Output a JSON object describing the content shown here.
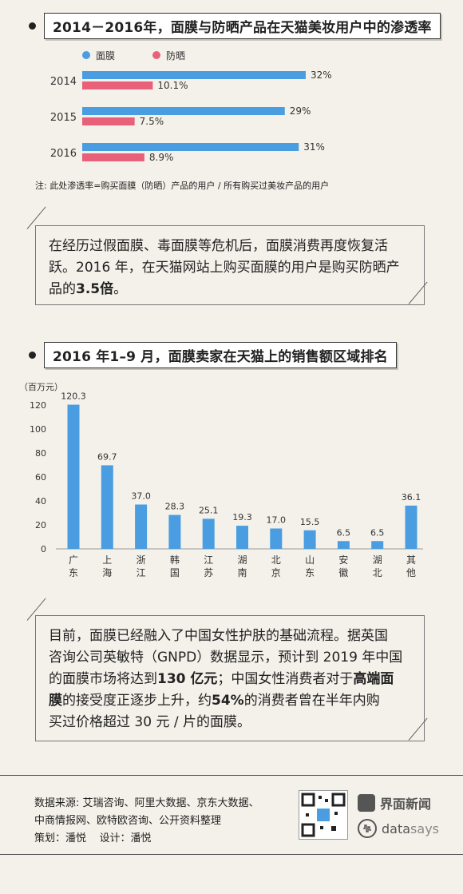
{
  "section1": {
    "title": "2014－2016年，面膜与防晒产品在天猫美妆用户中的渗透率",
    "note": "注: 此处渗透率=购买面膜（防晒）产品的用户 / 所有购买过美妆产品的用户"
  },
  "box1": {
    "line1": "在经历过假面膜、毒面膜等危机后，面膜消费再度恢复活",
    "line2": "跃。2016 年，在天猫网站上购买面膜的用户是购买防晒产",
    "line3_prefix": "品的",
    "line3_bold": "3.5倍",
    "line3_suffix": "。"
  },
  "section2": {
    "title": "2016 年1–9 月，面膜卖家在天猫上的销售额区域排名",
    "unit": "（百万元）"
  },
  "box2": {
    "l1": "目前，面膜已经融入了中国女性护肤的基础流程。据英国",
    "l2": "咨询公司英敏特（GNPD）数据显示，预计到 2019 年中国",
    "l3_a": "的面膜市场将达到",
    "l3_b": "130 亿元",
    "l3_c": "；中国女性消费者对于",
    "l3_d": "高端面",
    "l4_a": "膜",
    "l4_b": "的接受度正逐步上升，约",
    "l4_c": "54%",
    "l4_d": "的消费者曾在半年内购",
    "l5": "买过价格超过 30 元 / 片的面膜。"
  },
  "footer": {
    "source1": "数据来源: 艾瑞咨询、阿里大数据、京东大数据、",
    "source2": "中商情报网、欧特欧咨询、公开资料整理",
    "credit_plan": "策划：潘悦",
    "credit_design": "设计：潘悦",
    "brand1": "界面新闻",
    "brand2_a": "data ",
    "brand2_b": "says"
  },
  "colors": {
    "blue": "#4a9de0",
    "pink": "#e8607a"
  },
  "chart_data": [
    {
      "type": "bar",
      "orientation": "horizontal",
      "title": "2014－2016年，面膜与防晒产品在天猫美妆用户中的渗透率",
      "categories": [
        "2014",
        "2015",
        "2016"
      ],
      "series": [
        {
          "name": "面膜",
          "values": [
            32,
            29,
            31
          ],
          "labels": [
            "32%",
            "29%",
            "31%"
          ],
          "color": "#4a9de0"
        },
        {
          "name": "防晒",
          "values": [
            10.1,
            7.5,
            8.9
          ],
          "labels": [
            "10.1%",
            "7.5%",
            "8.9%"
          ],
          "color": "#e8607a"
        }
      ],
      "legend": "top-left"
    },
    {
      "type": "bar",
      "title": "2016 年1–9 月，面膜卖家在天猫上的销售额区域排名",
      "ylabel": "（百万元）",
      "ylim": [
        0,
        120
      ],
      "yticks": [
        0,
        20,
        40,
        60,
        80,
        100,
        120
      ],
      "categories": [
        "广东",
        "上海",
        "浙江",
        "韩国",
        "江苏",
        "湖南",
        "北京",
        "山东",
        "安徽",
        "湖北",
        "其他"
      ],
      "values": [
        120.3,
        69.7,
        37.0,
        28.3,
        25.1,
        19.3,
        17.0,
        15.5,
        6.5,
        6.5,
        36.1
      ],
      "value_labels": [
        "120.3",
        "69.7",
        "37.0",
        "28.3",
        "25.1",
        "19.3",
        "17.0",
        "15.5",
        "6.5",
        "6.5",
        "36.1"
      ],
      "color": "#4a9de0",
      "grid": false
    }
  ]
}
